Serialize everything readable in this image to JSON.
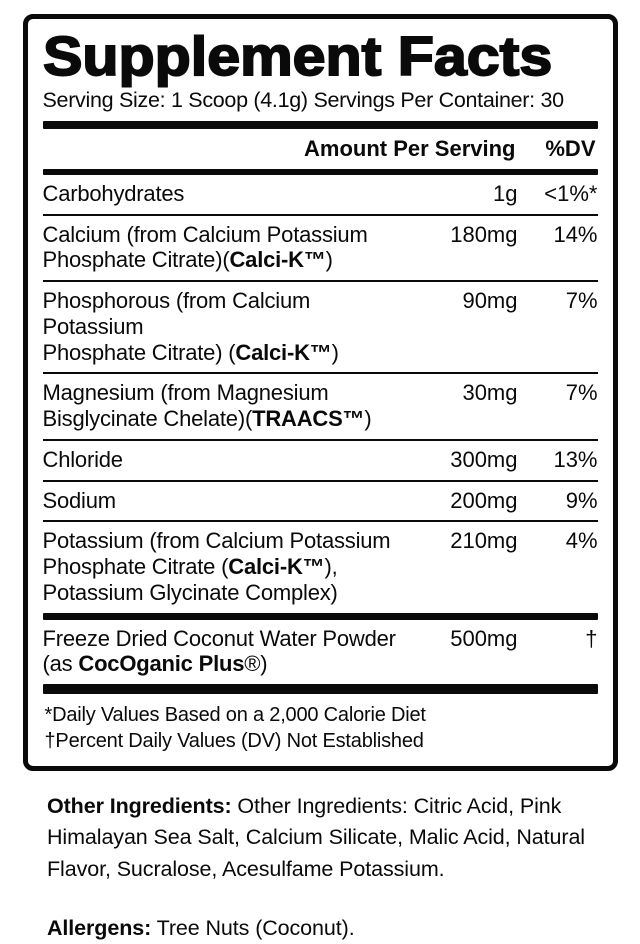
{
  "label": {
    "title": "Supplement Facts",
    "serving_line": "Serving Size: 1 Scoop (4.1g) Servings Per Container: 30",
    "columns": {
      "amount_header": "Amount Per Serving",
      "dv_header": "%DV"
    },
    "main_rows": [
      {
        "name": [
          {
            "t": "Carbohydrates"
          }
        ],
        "amount": "1g",
        "dv": "<1%*"
      },
      {
        "name": [
          {
            "t": "Calcium (from Calcium Potassium"
          },
          {
            "br": true
          },
          {
            "t": "Phosphate Citrate)("
          },
          {
            "t": "Calci-K™",
            "b": true
          },
          {
            "t": ")"
          }
        ],
        "amount": "180mg",
        "dv": "14%"
      },
      {
        "name": [
          {
            "t": "Phosphorous (from Calcium Potassium"
          },
          {
            "br": true
          },
          {
            "t": "Phosphate Citrate) ("
          },
          {
            "t": "Calci-K™",
            "b": true
          },
          {
            "t": ")"
          }
        ],
        "amount": "90mg",
        "dv": "7%"
      },
      {
        "name": [
          {
            "t": "Magnesium (from Magnesium"
          },
          {
            "br": true
          },
          {
            "t": "Bisglycinate Chelate)("
          },
          {
            "t": "TRAACS™",
            "b": true
          },
          {
            "t": ")"
          }
        ],
        "amount": "30mg",
        "dv": "7%"
      },
      {
        "name": [
          {
            "t": "Chloride"
          }
        ],
        "amount": "300mg",
        "dv": "13%"
      },
      {
        "name": [
          {
            "t": "Sodium"
          }
        ],
        "amount": "200mg",
        "dv": "9%"
      },
      {
        "name": [
          {
            "t": "Potassium (from Calcium Potassium"
          },
          {
            "br": true
          },
          {
            "t": "Phosphate Citrate ("
          },
          {
            "t": "Calci-K™",
            "b": true
          },
          {
            "t": "),"
          },
          {
            "br": true
          },
          {
            "t": "Potassium Glycinate Complex)"
          }
        ],
        "amount": "210mg",
        "dv": "4%"
      }
    ],
    "extra_rows": [
      {
        "name": [
          {
            "t": "Freeze Dried Coconut Water Powder"
          },
          {
            "br": true
          },
          {
            "t": "(as "
          },
          {
            "t": "CocOganic Plus",
            "b": true
          },
          {
            "t": "®)"
          }
        ],
        "amount": "500mg",
        "dv": "†"
      }
    ],
    "footnotes": [
      "*Daily Values Based on a 2,000 Calorie Diet",
      "†Percent Daily Values (DV) Not Established"
    ]
  },
  "below_label": {
    "other_ingredients_label": "Other Ingredients:",
    "other_ingredients_text": " Other Ingredients: Citric Acid, Pink Himalayan Sea Salt, Calcium Silicate, Malic Acid, Natural Flavor, Sucralose, Acesulfame Potassium.",
    "allergens_label": "Allergens:",
    "allergens_text": " Tree Nuts (Coconut)."
  },
  "colors": {
    "text": "#0a0a0a",
    "background": "#ffffff"
  }
}
